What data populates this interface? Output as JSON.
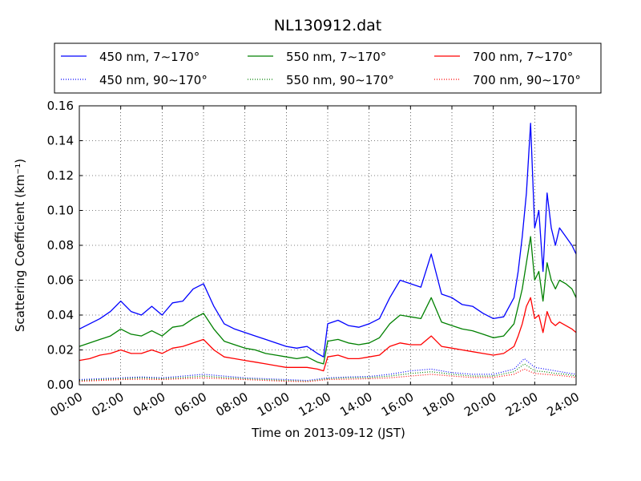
{
  "chart_data": {
    "type": "line",
    "title": "NL130912.dat",
    "xlabel": "Time on 2013-09-12 (JST)",
    "ylabel": "Scattering Coefficient (km⁻¹)",
    "xlim": [
      0,
      24
    ],
    "ylim": [
      0,
      0.16
    ],
    "x_ticks": [
      {
        "value": 0,
        "label": "00:00"
      },
      {
        "value": 2,
        "label": "02:00"
      },
      {
        "value": 4,
        "label": "04:00"
      },
      {
        "value": 6,
        "label": "06:00"
      },
      {
        "value": 8,
        "label": "08:00"
      },
      {
        "value": 10,
        "label": "10:00"
      },
      {
        "value": 12,
        "label": "12:00"
      },
      {
        "value": 14,
        "label": "14:00"
      },
      {
        "value": 16,
        "label": "16:00"
      },
      {
        "value": 18,
        "label": "18:00"
      },
      {
        "value": 20,
        "label": "20:00"
      },
      {
        "value": 22,
        "label": "22:00"
      },
      {
        "value": 24,
        "label": "24:00"
      }
    ],
    "y_ticks": [
      {
        "value": 0,
        "label": "0.00"
      },
      {
        "value": 0.02,
        "label": "0.02"
      },
      {
        "value": 0.04,
        "label": "0.04"
      },
      {
        "value": 0.06,
        "label": "0.06"
      },
      {
        "value": 0.08,
        "label": "0.08"
      },
      {
        "value": 0.1,
        "label": "0.10"
      },
      {
        "value": 0.12,
        "label": "0.12"
      },
      {
        "value": 0.14,
        "label": "0.14"
      },
      {
        "value": 0.16,
        "label": "0.16"
      }
    ],
    "grid": true,
    "legend_position": "top",
    "series": [
      {
        "name": "450 nm, 7∼170°",
        "color": "#0000ff",
        "style": "solid",
        "x": [
          0,
          0.5,
          1,
          1.5,
          2,
          2.5,
          3,
          3.5,
          4,
          4.5,
          5,
          5.5,
          6,
          6.5,
          7,
          7.5,
          8,
          8.5,
          9,
          9.5,
          10,
          10.5,
          11,
          11.5,
          11.8,
          12,
          12.5,
          13,
          13.5,
          14,
          14.5,
          15,
          15.5,
          16,
          16.5,
          17,
          17.5,
          18,
          18.5,
          19,
          19.5,
          20,
          20.5,
          21,
          21.2,
          21.4,
          21.6,
          21.8,
          22,
          22.2,
          22.4,
          22.6,
          22.8,
          23,
          23.2,
          23.5,
          23.8,
          24
        ],
        "y": [
          0.032,
          0.035,
          0.038,
          0.042,
          0.048,
          0.042,
          0.04,
          0.045,
          0.04,
          0.047,
          0.048,
          0.055,
          0.058,
          0.045,
          0.035,
          0.032,
          0.03,
          0.028,
          0.026,
          0.024,
          0.022,
          0.021,
          0.022,
          0.018,
          0.016,
          0.035,
          0.037,
          0.034,
          0.033,
          0.035,
          0.038,
          0.05,
          0.06,
          0.058,
          0.056,
          0.075,
          0.052,
          0.05,
          0.046,
          0.045,
          0.041,
          0.038,
          0.039,
          0.05,
          0.065,
          0.085,
          0.11,
          0.15,
          0.09,
          0.1,
          0.065,
          0.11,
          0.09,
          0.08,
          0.09,
          0.085,
          0.08,
          0.075
        ]
      },
      {
        "name": "550 nm, 7∼170°",
        "color": "#008000",
        "style": "solid",
        "x": [
          0,
          0.5,
          1,
          1.5,
          2,
          2.5,
          3,
          3.5,
          4,
          4.5,
          5,
          5.5,
          6,
          6.5,
          7,
          7.5,
          8,
          8.5,
          9,
          9.5,
          10,
          10.5,
          11,
          11.5,
          11.8,
          12,
          12.5,
          13,
          13.5,
          14,
          14.5,
          15,
          15.5,
          16,
          16.5,
          17,
          17.5,
          18,
          18.5,
          19,
          19.5,
          20,
          20.5,
          21,
          21.2,
          21.4,
          21.6,
          21.8,
          22,
          22.2,
          22.4,
          22.6,
          22.8,
          23,
          23.2,
          23.5,
          23.8,
          24
        ],
        "y": [
          0.022,
          0.024,
          0.026,
          0.028,
          0.032,
          0.029,
          0.028,
          0.031,
          0.028,
          0.033,
          0.034,
          0.038,
          0.041,
          0.032,
          0.025,
          0.023,
          0.021,
          0.02,
          0.018,
          0.017,
          0.016,
          0.015,
          0.016,
          0.013,
          0.012,
          0.025,
          0.026,
          0.024,
          0.023,
          0.024,
          0.027,
          0.035,
          0.04,
          0.039,
          0.038,
          0.05,
          0.036,
          0.034,
          0.032,
          0.031,
          0.029,
          0.027,
          0.028,
          0.035,
          0.045,
          0.055,
          0.07,
          0.085,
          0.06,
          0.065,
          0.048,
          0.07,
          0.06,
          0.055,
          0.06,
          0.058,
          0.055,
          0.05
        ]
      },
      {
        "name": "700 nm, 7∼170°",
        "color": "#ff0000",
        "style": "solid",
        "x": [
          0,
          0.5,
          1,
          1.5,
          2,
          2.5,
          3,
          3.5,
          4,
          4.5,
          5,
          5.5,
          6,
          6.5,
          7,
          7.5,
          8,
          8.5,
          9,
          9.5,
          10,
          10.5,
          11,
          11.5,
          11.8,
          12,
          12.5,
          13,
          13.5,
          14,
          14.5,
          15,
          15.5,
          16,
          16.5,
          17,
          17.5,
          18,
          18.5,
          19,
          19.5,
          20,
          20.5,
          21,
          21.2,
          21.4,
          21.6,
          21.8,
          22,
          22.2,
          22.4,
          22.6,
          22.8,
          23,
          23.2,
          23.5,
          23.8,
          24
        ],
        "y": [
          0.014,
          0.015,
          0.017,
          0.018,
          0.02,
          0.018,
          0.018,
          0.02,
          0.018,
          0.021,
          0.022,
          0.024,
          0.026,
          0.02,
          0.016,
          0.015,
          0.014,
          0.013,
          0.012,
          0.011,
          0.01,
          0.01,
          0.01,
          0.009,
          0.008,
          0.016,
          0.017,
          0.015,
          0.015,
          0.016,
          0.017,
          0.022,
          0.024,
          0.023,
          0.023,
          0.028,
          0.022,
          0.021,
          0.02,
          0.019,
          0.018,
          0.017,
          0.018,
          0.022,
          0.028,
          0.035,
          0.045,
          0.05,
          0.038,
          0.04,
          0.03,
          0.042,
          0.036,
          0.034,
          0.036,
          0.034,
          0.032,
          0.03
        ]
      },
      {
        "name": "450 nm, 90∼170°",
        "color": "#0000ff",
        "style": "dotted",
        "x": [
          0,
          1,
          2,
          3,
          4,
          5,
          6,
          7,
          8,
          9,
          10,
          11,
          12,
          13,
          14,
          15,
          16,
          17,
          18,
          19,
          20,
          21,
          21.5,
          22,
          22.5,
          23,
          23.5,
          24
        ],
        "y": [
          0.003,
          0.0035,
          0.004,
          0.0045,
          0.004,
          0.005,
          0.006,
          0.005,
          0.004,
          0.0035,
          0.003,
          0.0025,
          0.004,
          0.0045,
          0.0048,
          0.006,
          0.008,
          0.009,
          0.007,
          0.006,
          0.006,
          0.009,
          0.015,
          0.01,
          0.009,
          0.008,
          0.007,
          0.006
        ]
      },
      {
        "name": "550 nm, 90∼170°",
        "color": "#008000",
        "style": "dotted",
        "x": [
          0,
          1,
          2,
          3,
          4,
          5,
          6,
          7,
          8,
          9,
          10,
          11,
          12,
          13,
          14,
          15,
          16,
          17,
          18,
          19,
          20,
          21,
          21.5,
          22,
          22.5,
          23,
          23.5,
          24
        ],
        "y": [
          0.0025,
          0.003,
          0.0035,
          0.004,
          0.0035,
          0.0042,
          0.005,
          0.0042,
          0.0035,
          0.003,
          0.0025,
          0.002,
          0.0035,
          0.004,
          0.0042,
          0.005,
          0.0065,
          0.0075,
          0.006,
          0.005,
          0.005,
          0.0075,
          0.012,
          0.008,
          0.0075,
          0.0065,
          0.006,
          0.005
        ]
      },
      {
        "name": "700 nm, 90∼170°",
        "color": "#ff0000",
        "style": "dotted",
        "x": [
          0,
          1,
          2,
          3,
          4,
          5,
          6,
          7,
          8,
          9,
          10,
          11,
          12,
          13,
          14,
          15,
          16,
          17,
          18,
          19,
          20,
          21,
          21.5,
          22,
          22.5,
          23,
          23.5,
          24
        ],
        "y": [
          0.002,
          0.0025,
          0.003,
          0.0032,
          0.003,
          0.0035,
          0.004,
          0.0035,
          0.003,
          0.0025,
          0.002,
          0.0018,
          0.003,
          0.0032,
          0.0035,
          0.004,
          0.005,
          0.006,
          0.005,
          0.0042,
          0.0042,
          0.006,
          0.009,
          0.0065,
          0.006,
          0.0055,
          0.005,
          0.0042
        ]
      }
    ]
  }
}
